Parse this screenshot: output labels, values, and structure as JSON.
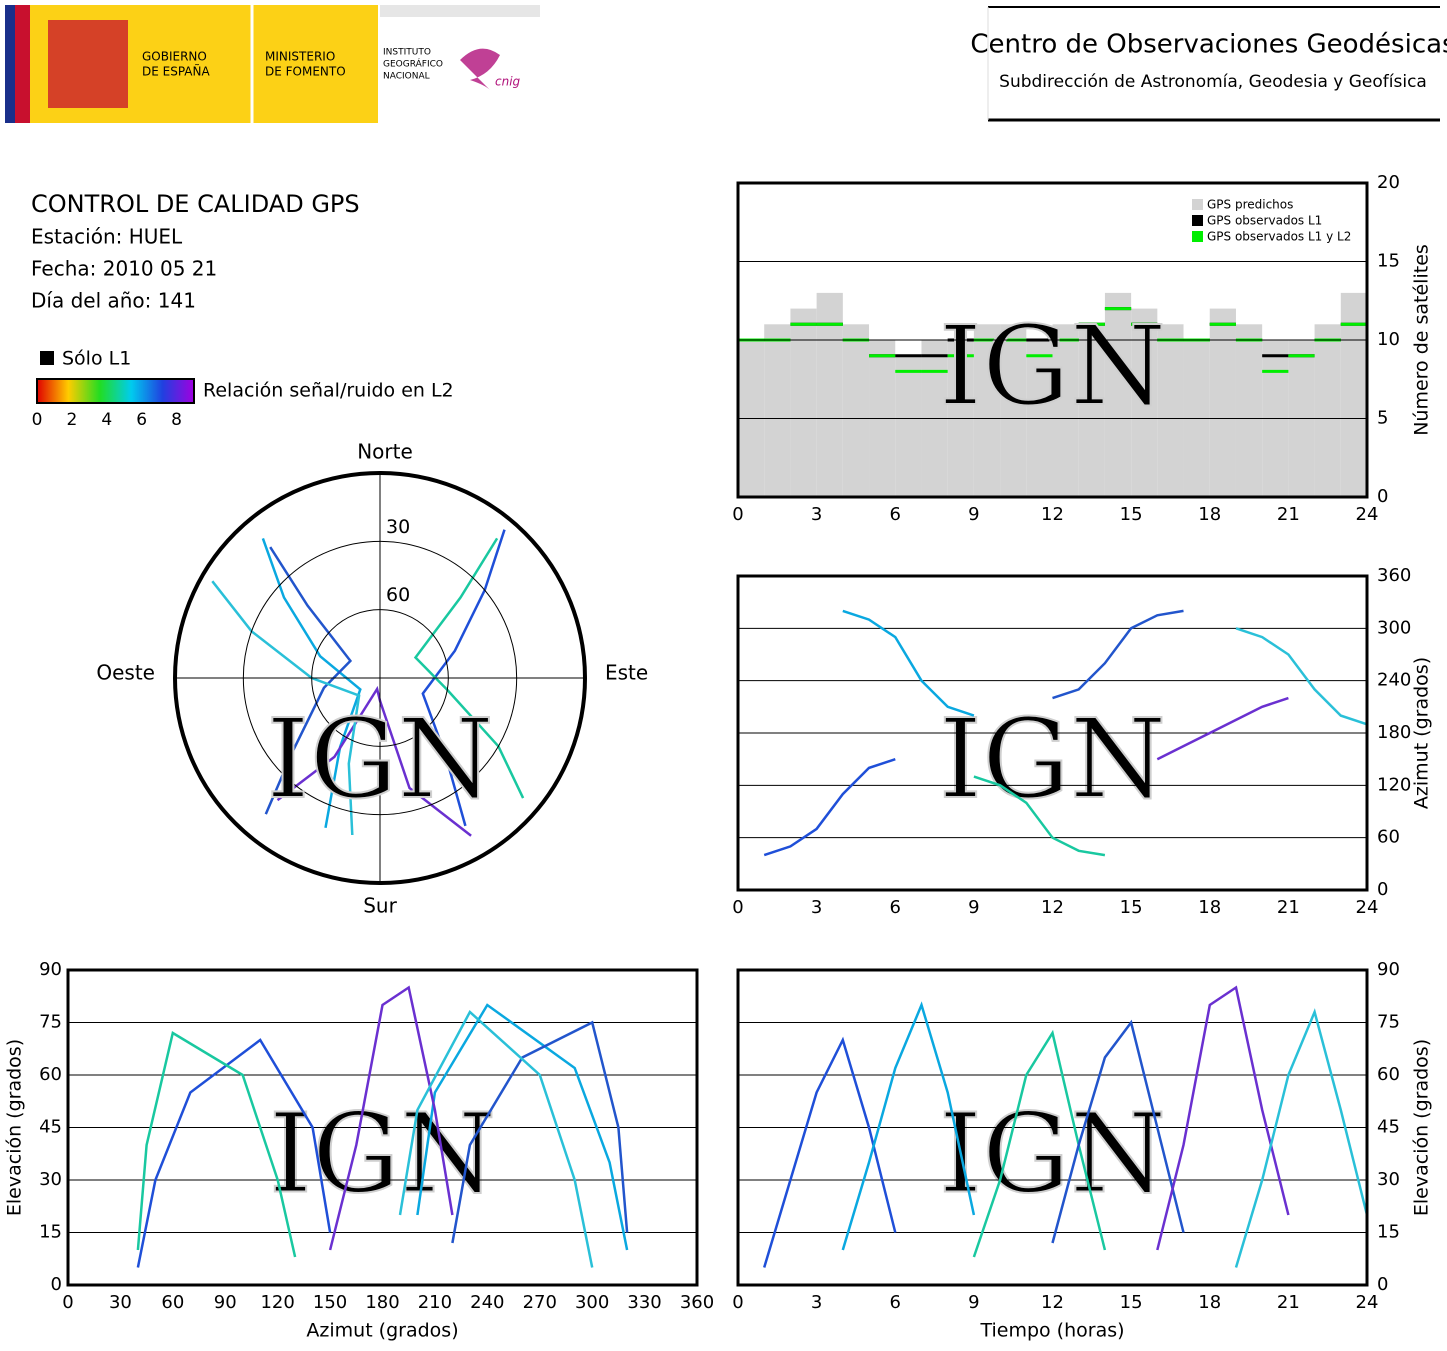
{
  "header": {
    "gov_line1": "GOBIERNO",
    "gov_line2": "DE ESPAÑA",
    "min_line1": "MINISTERIO",
    "min_line2": "DE FOMENTO",
    "ign_line1": "INSTITUTO",
    "ign_line2": "GEOGRÁFICO",
    "ign_line3": "NACIONAL",
    "logo_text": "cnig",
    "center_title": "Centro de Observaciones Geodésicas",
    "center_subtitle": "Subdirección de Astronomía, Geodesia y Geofísica"
  },
  "info": {
    "title": "CONTROL DE CALIDAD GPS",
    "station": "Estación: HUEL",
    "date": "Fecha: 2010 05 21",
    "doy": "Día del año: 141",
    "l1_legend": "Sólo L1",
    "colorbar_label": "Relación señal/ruido en L2",
    "clim": [
      0,
      9
    ],
    "cticks": [
      0,
      2,
      4,
      6,
      8
    ],
    "watermark": "IGN"
  },
  "chart_data": [
    {
      "type": "step",
      "y_label": "Número de satélites",
      "xlim": [
        0,
        24
      ],
      "xticks": [
        0,
        3,
        6,
        9,
        12,
        15,
        18,
        21,
        24
      ],
      "ylim": [
        0,
        20
      ],
      "yticks": [
        0,
        5,
        10,
        15,
        20
      ],
      "grid": true,
      "legend": "upper right",
      "x": [
        0,
        1,
        2,
        3,
        4,
        5,
        6,
        7,
        8,
        9,
        10,
        11,
        12,
        13,
        14,
        15,
        16,
        17,
        18,
        19,
        20,
        21,
        22,
        23
      ],
      "series": [
        {
          "name": "GPS predichos",
          "color": "#d3d3d3",
          "values": [
            10,
            11,
            12,
            13,
            11,
            10,
            9,
            10,
            10,
            11,
            11,
            10,
            11,
            11,
            13,
            12,
            11,
            10,
            12,
            11,
            10,
            10,
            11,
            13
          ]
        },
        {
          "name": "GPS observados L1",
          "color": "#000000",
          "values": [
            10,
            10,
            11,
            11,
            10,
            9,
            9,
            9,
            10,
            10,
            10,
            10,
            10,
            11,
            12,
            11,
            10,
            10,
            11,
            10,
            9,
            9,
            10,
            11
          ]
        },
        {
          "name": "GPS observados L1 y L2",
          "color": "#00ee00",
          "values": [
            10,
            10,
            11,
            11,
            10,
            9,
            8,
            8,
            9,
            10,
            10,
            9,
            10,
            11,
            12,
            11,
            10,
            10,
            11,
            10,
            8,
            9,
            10,
            11
          ]
        }
      ]
    },
    {
      "type": "line",
      "y_label": "Azimut (grados)",
      "xlim": [
        0,
        24
      ],
      "xticks": [
        0,
        3,
        6,
        9,
        12,
        15,
        18,
        21,
        24
      ],
      "ylim": [
        0,
        360
      ],
      "yticks": [
        0,
        60,
        120,
        180,
        240,
        300,
        360
      ],
      "grid": true,
      "series": [
        {
          "color": "#1f4fd8",
          "x": [
            1,
            2,
            3,
            4,
            5,
            6
          ],
          "values": [
            40,
            50,
            70,
            110,
            140,
            150
          ]
        },
        {
          "color": "#0aa8e0",
          "x": [
            4,
            5,
            6,
            7,
            8,
            9
          ],
          "values": [
            320,
            310,
            290,
            240,
            210,
            200
          ]
        },
        {
          "color": "#19c8a0",
          "x": [
            9,
            10,
            11,
            12,
            13,
            14
          ],
          "values": [
            130,
            120,
            100,
            60,
            45,
            40
          ]
        },
        {
          "color": "#2255cc",
          "x": [
            12,
            13,
            14,
            15,
            16,
            17
          ],
          "values": [
            220,
            230,
            260,
            300,
            315,
            320
          ]
        },
        {
          "color": "#6a30d0",
          "x": [
            16,
            17,
            18,
            19,
            20,
            21
          ],
          "values": [
            150,
            165,
            180,
            195,
            210,
            220
          ]
        },
        {
          "color": "#2ac0d8",
          "x": [
            19,
            20,
            21,
            22,
            23,
            24
          ],
          "values": [
            300,
            290,
            270,
            230,
            200,
            190
          ]
        }
      ]
    },
    {
      "type": "line",
      "x_label": "Azimut (grados)",
      "y_label": "Elevación (grados)",
      "xlim": [
        0,
        360
      ],
      "xticks": [
        0,
        30,
        60,
        90,
        120,
        150,
        180,
        210,
        240,
        270,
        300,
        330,
        360
      ],
      "ylim": [
        0,
        90
      ],
      "yticks": [
        0,
        15,
        30,
        45,
        60,
        75,
        90
      ],
      "grid": true,
      "series": [
        {
          "color": "#1f4fd8",
          "x": [
            40,
            50,
            70,
            110,
            140,
            150
          ],
          "values": [
            5,
            30,
            55,
            70,
            45,
            15
          ]
        },
        {
          "color": "#0aa8e0",
          "x": [
            320,
            310,
            290,
            240,
            210,
            200
          ],
          "values": [
            10,
            35,
            62,
            80,
            55,
            20
          ]
        },
        {
          "color": "#19c8a0",
          "x": [
            130,
            120,
            100,
            60,
            45,
            40
          ],
          "values": [
            8,
            30,
            60,
            72,
            40,
            10
          ]
        },
        {
          "color": "#2255cc",
          "x": [
            220,
            230,
            260,
            300,
            315,
            320
          ],
          "values": [
            12,
            40,
            65,
            75,
            45,
            15
          ]
        },
        {
          "color": "#6a30d0",
          "x": [
            150,
            165,
            180,
            195,
            210,
            220
          ],
          "values": [
            10,
            40,
            80,
            85,
            50,
            20
          ]
        },
        {
          "color": "#2ac0d8",
          "x": [
            300,
            290,
            270,
            230,
            200,
            190
          ],
          "values": [
            5,
            30,
            60,
            78,
            50,
            20
          ]
        }
      ]
    },
    {
      "type": "line",
      "x_label": "Tiempo (horas)",
      "y_label": "Elevación (grados)",
      "xlim": [
        0,
        24
      ],
      "xticks": [
        0,
        3,
        6,
        9,
        12,
        15,
        18,
        21,
        24
      ],
      "ylim": [
        0,
        90
      ],
      "yticks": [
        0,
        15,
        30,
        45,
        60,
        75,
        90
      ],
      "grid": true,
      "series": [
        {
          "color": "#1f4fd8",
          "x": [
            1,
            2,
            3,
            4,
            5,
            6
          ],
          "values": [
            5,
            30,
            55,
            70,
            45,
            15
          ]
        },
        {
          "color": "#0aa8e0",
          "x": [
            4,
            5,
            6,
            7,
            8,
            9
          ],
          "values": [
            10,
            35,
            62,
            80,
            55,
            20
          ]
        },
        {
          "color": "#19c8a0",
          "x": [
            9,
            10,
            11,
            12,
            13,
            14
          ],
          "values": [
            8,
            30,
            60,
            72,
            40,
            10
          ]
        },
        {
          "color": "#2255cc",
          "x": [
            12,
            13,
            14,
            15,
            16,
            17
          ],
          "values": [
            12,
            40,
            65,
            75,
            45,
            15
          ]
        },
        {
          "color": "#6a30d0",
          "x": [
            16,
            17,
            18,
            19,
            20,
            21
          ],
          "values": [
            10,
            40,
            80,
            85,
            50,
            20
          ]
        },
        {
          "color": "#2ac0d8",
          "x": [
            19,
            20,
            21,
            22,
            23,
            24
          ],
          "values": [
            5,
            30,
            60,
            78,
            50,
            20
          ]
        }
      ]
    },
    {
      "type": "polar",
      "directions": {
        "north": "Norte",
        "east": "Este",
        "south": "Sur",
        "west": "Oeste"
      },
      "rlim": [
        0,
        90
      ],
      "rticks": [
        30,
        60
      ],
      "series": [
        {
          "color": "#1f4fd8",
          "x": [
            40,
            50,
            70,
            110,
            140,
            150
          ],
          "values": [
            5,
            30,
            55,
            70,
            45,
            15
          ]
        },
        {
          "color": "#0aa8e0",
          "x": [
            320,
            310,
            290,
            240,
            210,
            200
          ],
          "values": [
            10,
            35,
            62,
            80,
            55,
            20
          ]
        },
        {
          "color": "#19c8a0",
          "x": [
            130,
            120,
            100,
            60,
            45,
            40
          ],
          "values": [
            8,
            30,
            60,
            72,
            40,
            10
          ]
        },
        {
          "color": "#2255cc",
          "x": [
            220,
            230,
            260,
            300,
            315,
            320
          ],
          "values": [
            12,
            40,
            65,
            75,
            45,
            15
          ]
        },
        {
          "color": "#6a30d0",
          "x": [
            150,
            165,
            180,
            195,
            210,
            220
          ],
          "values": [
            10,
            40,
            80,
            85,
            50,
            20
          ]
        },
        {
          "color": "#2ac0d8",
          "x": [
            300,
            290,
            270,
            230,
            200,
            190
          ],
          "values": [
            5,
            30,
            60,
            78,
            50,
            20
          ]
        }
      ]
    }
  ]
}
